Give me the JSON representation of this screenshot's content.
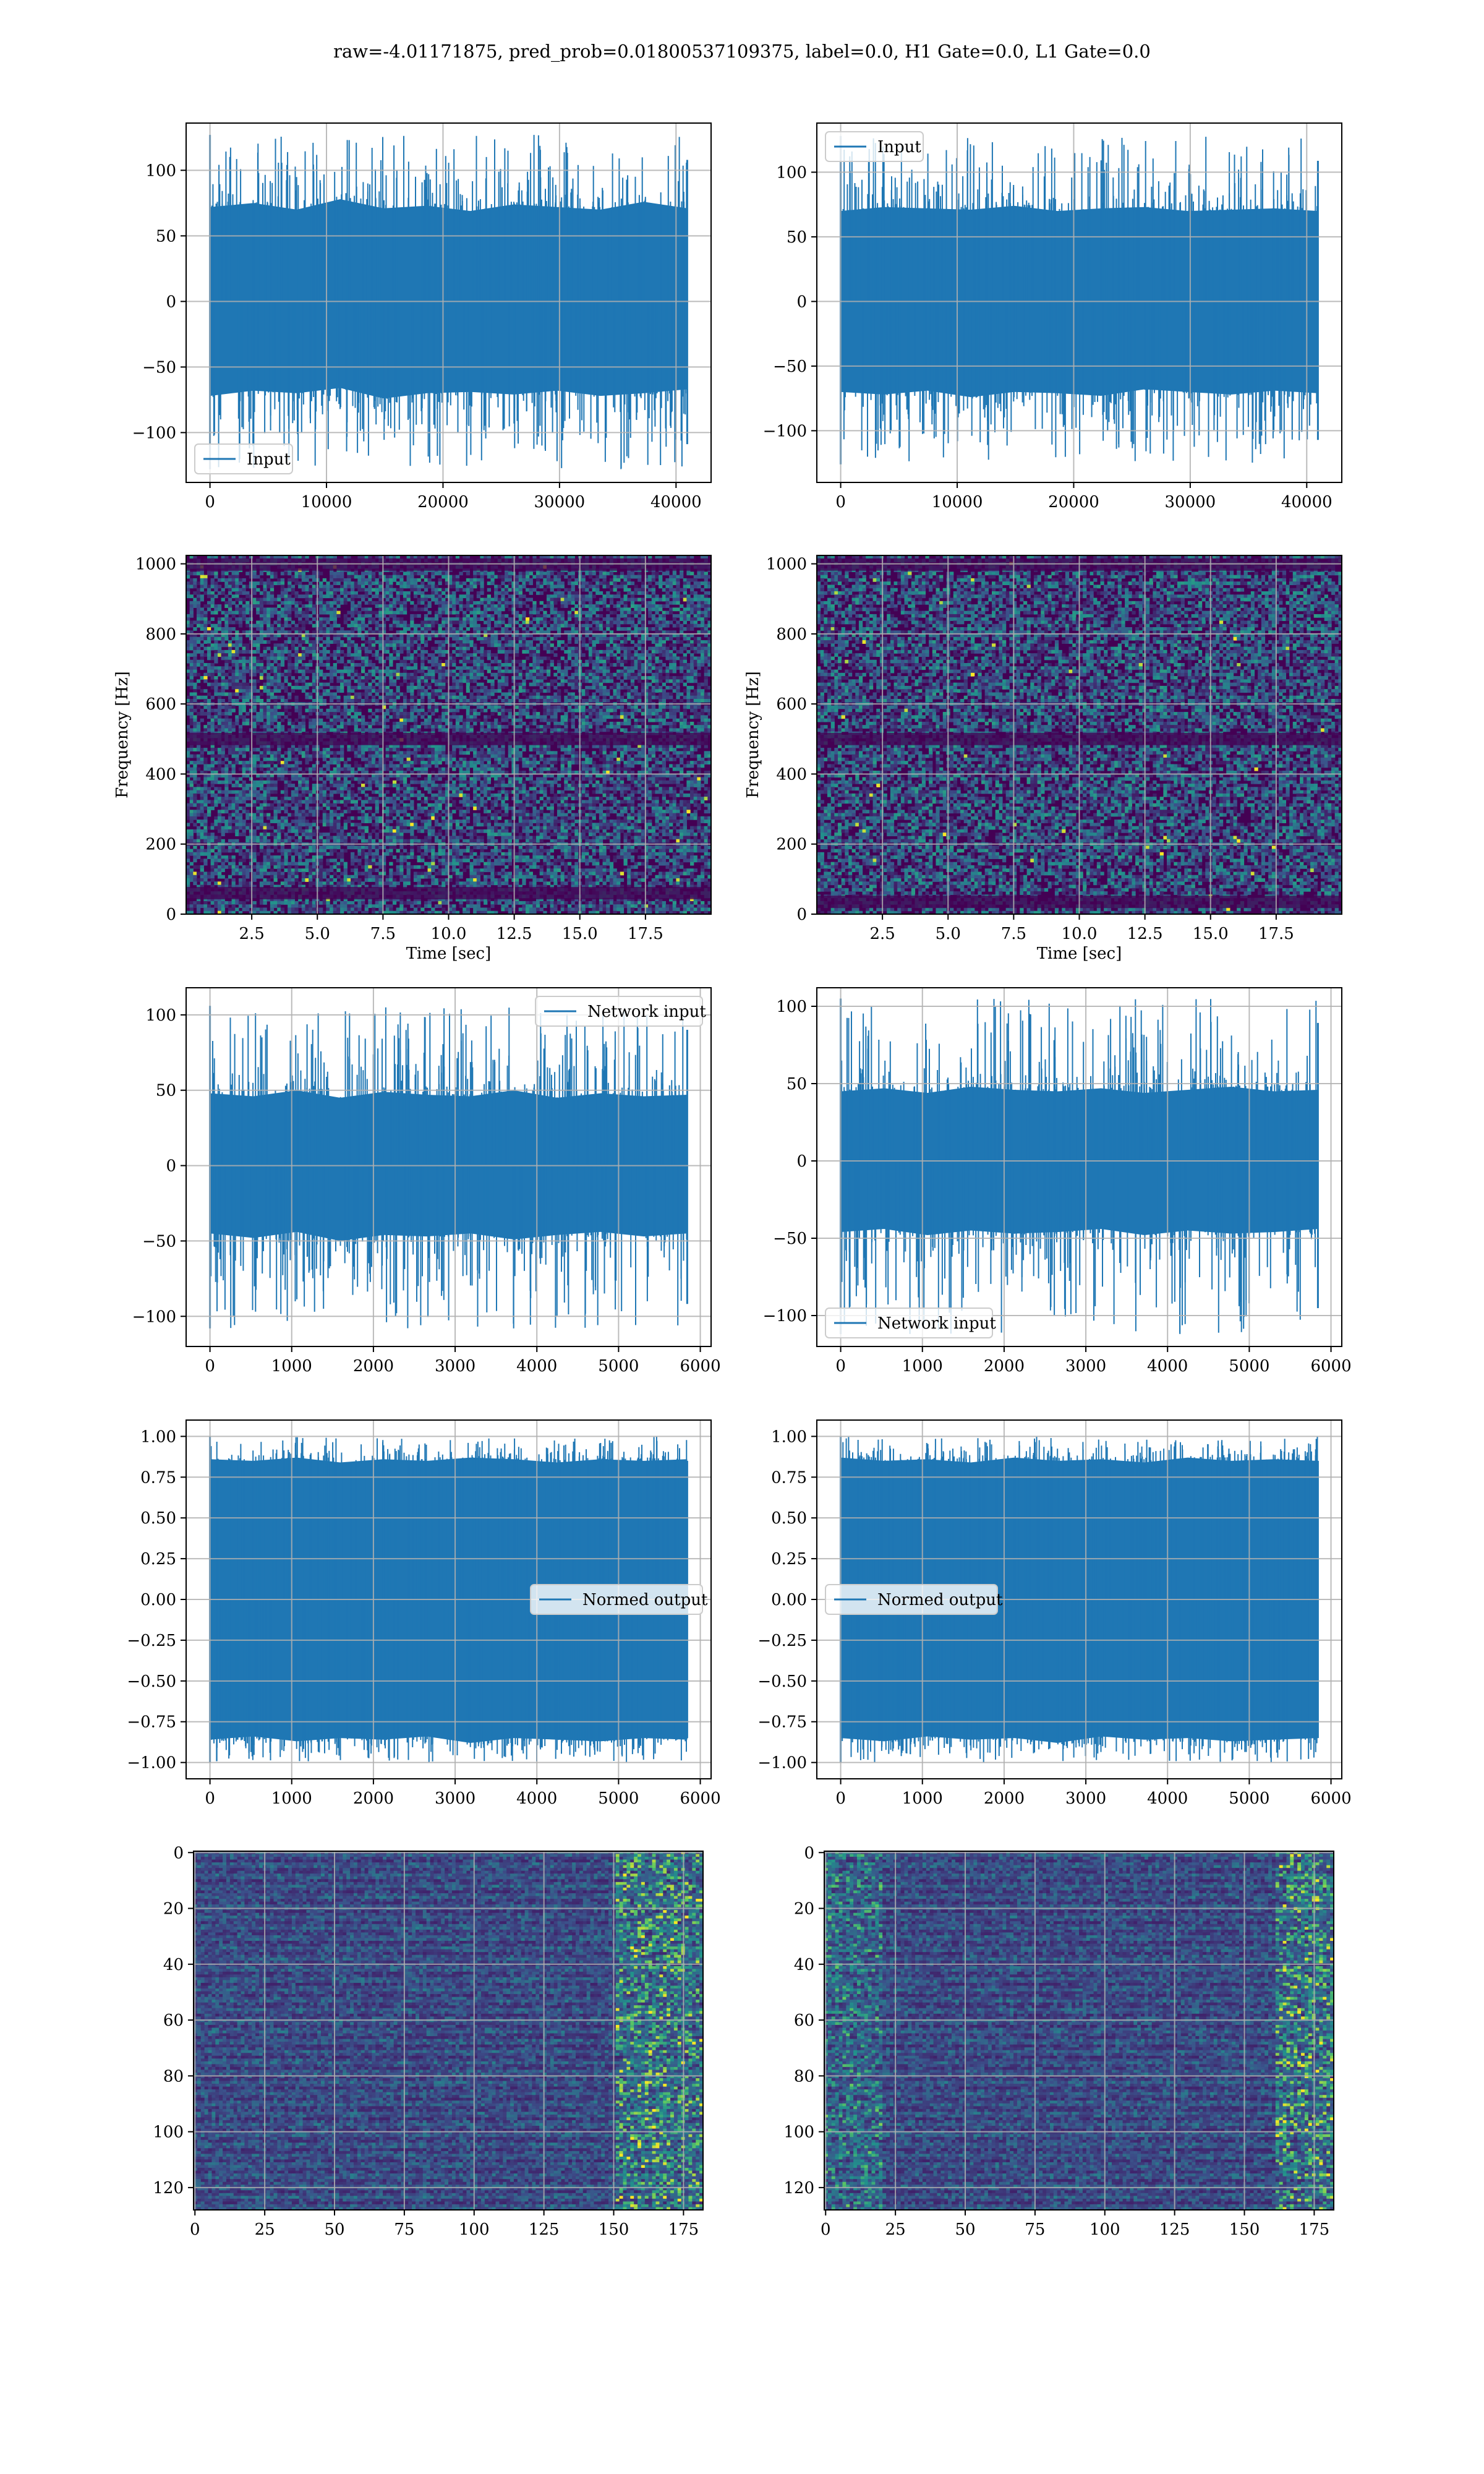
{
  "figure": {
    "suptitle": "raw=-4.01171875, pred_prob=0.01800537109375, label=0.0, H1 Gate=0.0, L1 Gate=0.0"
  },
  "colors": {
    "line": "#1f77b4",
    "grid": "#b0b0b0",
    "viridis_dark": "#440154",
    "viridis_purple": "#3b0f70",
    "viridis_blue": "#31688e",
    "viridis_teal": "#21918c",
    "viridis_green": "#35b779",
    "viridis_yellow": "#fde725"
  },
  "chart_data": [
    {
      "id": "r1-left",
      "type": "line",
      "fill_envelope": true,
      "grid": true,
      "series": [
        {
          "name": "Input",
          "n_samples": 40960,
          "envelope_low": [
            -72,
            -68,
            -70,
            -66,
            -74,
            -70,
            -69,
            -71,
            -68,
            -72,
            -70,
            -67
          ],
          "envelope_high": [
            72,
            75,
            70,
            78,
            71,
            73,
            69,
            74,
            72,
            70,
            76,
            71
          ],
          "min": -128,
          "max": 127
        }
      ],
      "xlim": [
        -2048,
        43008
      ],
      "ylim": [
        -138,
        136
      ],
      "xticks": [
        0,
        10000,
        20000,
        30000,
        40000
      ],
      "yticks": [
        -100,
        -50,
        0,
        50,
        100
      ],
      "xtick_labels": [
        "0",
        "10000",
        "20000",
        "30000",
        "40000"
      ],
      "ytick_labels": [
        "−100",
        "−50",
        "0",
        "50",
        "100"
      ],
      "legend_loc": "lower-left"
    },
    {
      "id": "r1-right",
      "type": "line",
      "fill_envelope": true,
      "grid": true,
      "series": [
        {
          "name": "Input",
          "n_samples": 40960,
          "envelope_low": [
            -70,
            -72,
            -69,
            -74,
            -70,
            -71,
            -73,
            -68,
            -70,
            -72,
            -69,
            -71
          ],
          "envelope_high": [
            70,
            73,
            72,
            71,
            74,
            70,
            72,
            73,
            70,
            71,
            72,
            70
          ],
          "min": -126,
          "max": 128
        }
      ],
      "xlim": [
        -2048,
        43008
      ],
      "ylim": [
        -140,
        138
      ],
      "xticks": [
        0,
        10000,
        20000,
        30000,
        40000
      ],
      "yticks": [
        -100,
        -50,
        0,
        50,
        100
      ],
      "xtick_labels": [
        "0",
        "10000",
        "20000",
        "30000",
        "40000"
      ],
      "ytick_labels": [
        "−100",
        "−50",
        "0",
        "50",
        "100"
      ],
      "legend_loc": "upper-left"
    },
    {
      "id": "r2-left",
      "type": "heatmap",
      "colormap": "viridis",
      "grid": true,
      "xlim": [
        0,
        20
      ],
      "ylim": [
        0,
        1024
      ],
      "xticks": [
        2.5,
        5.0,
        7.5,
        10.0,
        12.5,
        15.0,
        17.5
      ],
      "yticks": [
        0,
        200,
        400,
        600,
        800,
        1000
      ],
      "xtick_labels": [
        "2.5",
        "5.0",
        "7.5",
        "10.0",
        "12.5",
        "15.0",
        "17.5"
      ],
      "ytick_labels": [
        "0",
        "200",
        "400",
        "600",
        "800",
        "1000"
      ],
      "xlabel": "Time [sec]",
      "ylabel": "Frequency [Hz]",
      "dark_bands_hz": [
        998,
        500,
        60
      ]
    },
    {
      "id": "r2-right",
      "type": "heatmap",
      "colormap": "viridis",
      "grid": true,
      "xlim": [
        0,
        20
      ],
      "ylim": [
        0,
        1024
      ],
      "xticks": [
        2.5,
        5.0,
        7.5,
        10.0,
        12.5,
        15.0,
        17.5
      ],
      "yticks": [
        0,
        200,
        400,
        600,
        800,
        1000
      ],
      "xtick_labels": [
        "2.5",
        "5.0",
        "7.5",
        "10.0",
        "12.5",
        "15.0",
        "17.5"
      ],
      "ytick_labels": [
        "0",
        "200",
        "400",
        "600",
        "800",
        "1000"
      ],
      "xlabel": "Time [sec]",
      "ylabel": "Frequency [Hz]",
      "dark_bands_hz": [
        998,
        500,
        35
      ]
    },
    {
      "id": "r3-left",
      "type": "line",
      "fill_envelope": true,
      "grid": true,
      "series": [
        {
          "name": "Network input",
          "n_samples": 5840,
          "envelope_low": [
            -45,
            -48,
            -44,
            -50,
            -46,
            -47,
            -45,
            -49,
            -46,
            -44,
            -47,
            -45
          ],
          "envelope_high": [
            48,
            46,
            50,
            45,
            49,
            47,
            46,
            50,
            45,
            48,
            46,
            47
          ],
          "min": -108,
          "max": 106
        }
      ],
      "xlim": [
        -292,
        6132
      ],
      "ylim": [
        -120,
        118
      ],
      "xticks": [
        0,
        1000,
        2000,
        3000,
        4000,
        5000,
        6000
      ],
      "yticks": [
        -100,
        -50,
        0,
        50,
        100
      ],
      "xtick_labels": [
        "0",
        "1000",
        "2000",
        "3000",
        "4000",
        "5000",
        "6000"
      ],
      "ytick_labels": [
        "−100",
        "−50",
        "0",
        "50",
        "100"
      ],
      "legend_loc": "upper-right"
    },
    {
      "id": "r3-right",
      "type": "line",
      "fill_envelope": true,
      "grid": true,
      "series": [
        {
          "name": "Network input",
          "n_samples": 5840,
          "envelope_low": [
            -46,
            -44,
            -48,
            -45,
            -47,
            -46,
            -44,
            -48,
            -45,
            -47,
            -46,
            -44
          ],
          "envelope_high": [
            45,
            47,
            44,
            48,
            46,
            45,
            47,
            44,
            46,
            48,
            45,
            46
          ],
          "min": -112,
          "max": 105
        }
      ],
      "xlim": [
        -292,
        6132
      ],
      "ylim": [
        -120,
        112
      ],
      "xticks": [
        0,
        1000,
        2000,
        3000,
        4000,
        5000,
        6000
      ],
      "yticks": [
        -100,
        -50,
        0,
        50,
        100
      ],
      "xtick_labels": [
        "0",
        "1000",
        "2000",
        "3000",
        "4000",
        "5000",
        "6000"
      ],
      "ytick_labels": [
        "−100",
        "−50",
        "0",
        "50",
        "100"
      ],
      "legend_loc": "lower-left"
    },
    {
      "id": "r4-left",
      "type": "line",
      "fill_envelope": true,
      "grid": true,
      "series": [
        {
          "name": "Normed output",
          "n_samples": 5840,
          "envelope_low": [
            -0.86,
            -0.84,
            -0.87,
            -0.85,
            -0.86,
            -0.84,
            -0.88,
            -0.85,
            -0.86,
            -0.87,
            -0.85,
            -0.86
          ],
          "envelope_high": [
            0.86,
            0.85,
            0.87,
            0.84,
            0.86,
            0.85,
            0.87,
            0.86,
            0.84,
            0.86,
            0.85,
            0.86
          ],
          "min": -1.0,
          "max": 1.0
        }
      ],
      "xlim": [
        -292,
        6132
      ],
      "ylim": [
        -1.1,
        1.1
      ],
      "xticks": [
        0,
        1000,
        2000,
        3000,
        4000,
        5000,
        6000
      ],
      "yticks": [
        -1.0,
        -0.75,
        -0.5,
        -0.25,
        0.0,
        0.25,
        0.5,
        0.75,
        1.0
      ],
      "xtick_labels": [
        "0",
        "1000",
        "2000",
        "3000",
        "4000",
        "5000",
        "6000"
      ],
      "ytick_labels": [
        "−1.00",
        "−0.75",
        "−0.50",
        "−0.25",
        "0.00",
        "0.25",
        "0.50",
        "0.75",
        "1.00"
      ],
      "legend_loc": "center-right"
    },
    {
      "id": "r4-right",
      "type": "line",
      "fill_envelope": true,
      "grid": true,
      "series": [
        {
          "name": "Normed output",
          "n_samples": 5840,
          "envelope_low": [
            -0.85,
            -0.87,
            -0.84,
            -0.86,
            -0.85,
            -0.88,
            -0.84,
            -0.86,
            -0.85,
            -0.87,
            -0.86,
            -0.85
          ],
          "envelope_high": [
            0.87,
            0.85,
            0.86,
            0.84,
            0.87,
            0.85,
            0.86,
            0.84,
            0.87,
            0.85,
            0.86,
            0.85
          ],
          "min": -1.0,
          "max": 1.0
        }
      ],
      "xlim": [
        -292,
        6132
      ],
      "ylim": [
        -1.1,
        1.1
      ],
      "xticks": [
        0,
        1000,
        2000,
        3000,
        4000,
        5000,
        6000
      ],
      "yticks": [
        -1.0,
        -0.75,
        -0.5,
        -0.25,
        0.0,
        0.25,
        0.5,
        0.75,
        1.0
      ],
      "xtick_labels": [
        "0",
        "1000",
        "2000",
        "3000",
        "4000",
        "5000",
        "6000"
      ],
      "ytick_labels": [
        "−1.00",
        "−0.75",
        "−0.50",
        "−0.25",
        "0.00",
        "0.25",
        "0.50",
        "0.75",
        "1.00"
      ],
      "legend_loc": "center-left"
    },
    {
      "id": "r5-left",
      "type": "heatmap",
      "colormap": "viridis",
      "grid": true,
      "xlim": [
        -0.5,
        182
      ],
      "ylim": [
        128,
        -0.5
      ],
      "y_inverted": true,
      "xticks": [
        0,
        25,
        50,
        75,
        100,
        125,
        150,
        175
      ],
      "yticks": [
        0,
        20,
        40,
        60,
        80,
        100,
        120
      ],
      "xtick_labels": [
        "0",
        "25",
        "50",
        "75",
        "100",
        "125",
        "150",
        "175"
      ],
      "ytick_labels": [
        "0",
        "20",
        "40",
        "60",
        "80",
        "100",
        "120"
      ],
      "bright_columns_from": 150
    },
    {
      "id": "r5-right",
      "type": "heatmap",
      "colormap": "viridis",
      "grid": true,
      "xlim": [
        -0.5,
        182
      ],
      "ylim": [
        128,
        -0.5
      ],
      "y_inverted": true,
      "xticks": [
        0,
        25,
        50,
        75,
        100,
        125,
        150,
        175
      ],
      "yticks": [
        0,
        20,
        40,
        60,
        80,
        100,
        120
      ],
      "xtick_labels": [
        "0",
        "25",
        "50",
        "75",
        "100",
        "125",
        "150",
        "175"
      ],
      "ytick_labels": [
        "0",
        "20",
        "40",
        "60",
        "80",
        "100",
        "120"
      ],
      "bright_columns_from": 160,
      "bright_columns_until": 20
    }
  ]
}
